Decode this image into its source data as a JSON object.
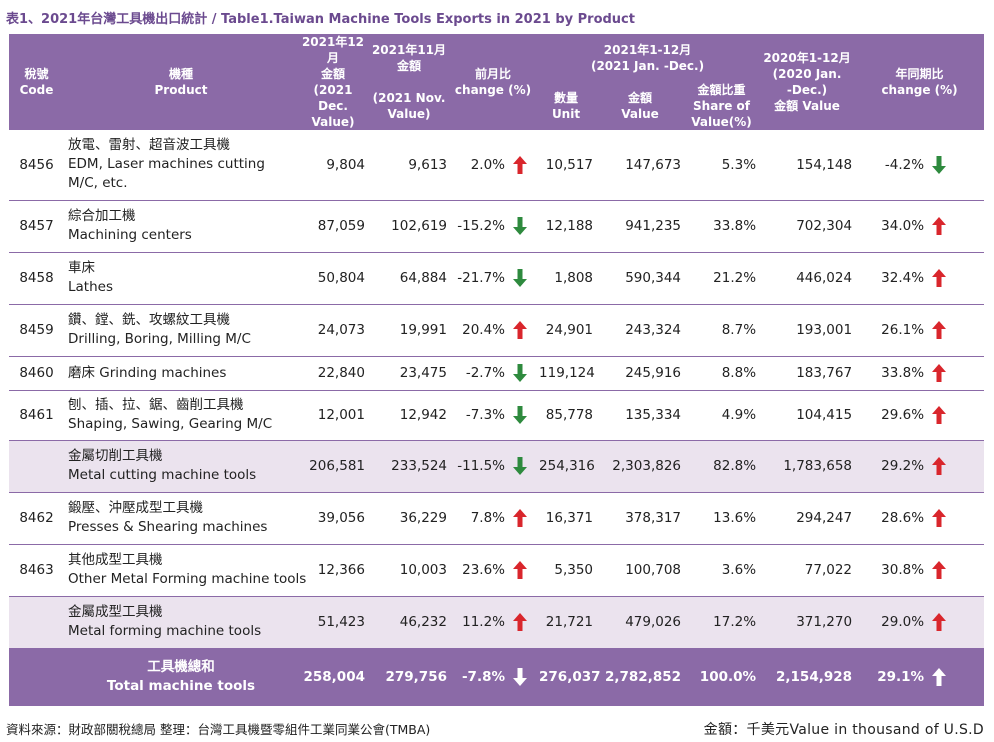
{
  "title": "表1、2021年台灣工具機出口統計 / Table1.Taiwan Machine Tools Exports  in 2021 by Product",
  "headers": {
    "code": [
      "稅號",
      "Code"
    ],
    "product": [
      "機種",
      "Product"
    ],
    "dec_top": [
      "2021年12月",
      "金額"
    ],
    "dec_bottom": [
      "(2021 Dec.",
      "Value)"
    ],
    "nov_top": [
      "2021年11月",
      "金額"
    ],
    "nov_bottom": [
      "(2021 Nov.",
      "Value)"
    ],
    "mom": [
      "前月比",
      "change (%)"
    ],
    "ytd_group": [
      "2021年1-12月",
      "(2021 Jan. -Dec.)"
    ],
    "unit": [
      "數量",
      "Unit"
    ],
    "value": [
      "金額",
      "Value"
    ],
    "share": [
      "金額比重",
      "Share of",
      "Value(%)"
    ],
    "prev": [
      "2020年1-12月",
      "(2020 Jan.",
      "-Dec.)",
      "金額 Value"
    ],
    "yoy": [
      "年同期比",
      "change (%)"
    ]
  },
  "colors": {
    "header_bg": "#8b6aa7",
    "subtotal_bg": "#ebe3ee",
    "up_arrow": "#d9262c",
    "down_arrow": "#2e8a3e",
    "total_arrow": "#ffffff"
  },
  "rows": [
    {
      "code": "8456",
      "name": [
        "放電、雷射、超音波工具機",
        "EDM, Laser machines cutting",
        "M/C, etc."
      ],
      "dec": "9,804",
      "nov": "9,613",
      "mom": "2.0%",
      "mom_dir": "up",
      "unit": "10,517",
      "value": "147,673",
      "share": "5.3%",
      "prev": "154,148",
      "yoy": "-4.2%",
      "yoy_dir": "down",
      "type": "normal"
    },
    {
      "code": "8457",
      "name": [
        "綜合加工機",
        "Machining centers"
      ],
      "dec": "87,059",
      "nov": "102,619",
      "mom": "-15.2%",
      "mom_dir": "down",
      "unit": "12,188",
      "value": "941,235",
      "share": "33.8%",
      "prev": "702,304",
      "yoy": "34.0%",
      "yoy_dir": "up",
      "type": "normal"
    },
    {
      "code": "8458",
      "name": [
        "車床",
        "Lathes"
      ],
      "dec": "50,804",
      "nov": "64,884",
      "mom": "-21.7%",
      "mom_dir": "down",
      "unit": "1,808",
      "value": "590,344",
      "share": "21.2%",
      "prev": "446,024",
      "yoy": "32.4%",
      "yoy_dir": "up",
      "type": "normal"
    },
    {
      "code": "8459",
      "name": [
        "鑽、鏜、銑、攻螺紋工具機",
        "Drilling, Boring, Milling M/C"
      ],
      "dec": "24,073",
      "nov": "19,991",
      "mom": "20.4%",
      "mom_dir": "up",
      "unit": "24,901",
      "value": "243,324",
      "share": "8.7%",
      "prev": "193,001",
      "yoy": "26.1%",
      "yoy_dir": "up",
      "type": "normal"
    },
    {
      "code": "8460",
      "name": [
        "磨床  Grinding machines"
      ],
      "dec": "22,840",
      "nov": "23,475",
      "mom": "-2.7%",
      "mom_dir": "down",
      "unit": "119,124",
      "value": "245,916",
      "share": "8.8%",
      "prev": "183,767",
      "yoy": "33.8%",
      "yoy_dir": "up",
      "type": "normal"
    },
    {
      "code": "8461",
      "name": [
        "刨、插、拉、鋸、齒削工具機",
        "Shaping, Sawing, Gearing M/C"
      ],
      "dec": "12,001",
      "nov": "12,942",
      "mom": "-7.3%",
      "mom_dir": "down",
      "unit": "85,778",
      "value": "135,334",
      "share": "4.9%",
      "prev": "104,415",
      "yoy": "29.6%",
      "yoy_dir": "up",
      "type": "normal"
    },
    {
      "code": "",
      "name": [
        "金屬切削工具機",
        "Metal cutting machine tools"
      ],
      "dec": "206,581",
      "nov": "233,524",
      "mom": "-11.5%",
      "mom_dir": "down",
      "unit": "254,316",
      "value": "2,303,826",
      "share": "82.8%",
      "prev": "1,783,658",
      "yoy": "29.2%",
      "yoy_dir": "up",
      "type": "sub"
    },
    {
      "code": "8462",
      "name": [
        "鍛壓、沖壓成型工具機",
        "Presses & Shearing machines"
      ],
      "dec": "39,056",
      "nov": "36,229",
      "mom": "7.8%",
      "mom_dir": "up",
      "unit": "16,371",
      "value": "378,317",
      "share": "13.6%",
      "prev": "294,247",
      "yoy": "28.6%",
      "yoy_dir": "up",
      "type": "normal"
    },
    {
      "code": "8463",
      "name": [
        "其他成型工具機",
        "Other Metal Forming machine tools"
      ],
      "dec": "12,366",
      "nov": "10,003",
      "mom": "23.6%",
      "mom_dir": "up",
      "unit": "5,350",
      "value": "100,708",
      "share": "3.6%",
      "prev": "77,022",
      "yoy": "30.8%",
      "yoy_dir": "up",
      "type": "normal"
    },
    {
      "code": "",
      "name": [
        "金屬成型工具機",
        "Metal forming machine tools"
      ],
      "dec": "51,423",
      "nov": "46,232",
      "mom": "11.2%",
      "mom_dir": "up",
      "unit": "21,721",
      "value": "479,026",
      "share": "17.2%",
      "prev": "371,270",
      "yoy": "29.0%",
      "yoy_dir": "up",
      "type": "sub"
    },
    {
      "code": "",
      "name": [
        "工具機總和",
        "Total machine tools"
      ],
      "dec": "258,004",
      "nov": "279,756",
      "mom": "-7.8%",
      "mom_dir": "down",
      "unit": "276,037",
      "value": "2,782,852",
      "share": "100.0%",
      "prev": "2,154,928",
      "yoy": "29.1%",
      "yoy_dir": "up",
      "type": "total"
    }
  ],
  "footer": {
    "source": "資料來源：財政部關稅總局  整理：台灣工具機暨零組件工業同業公會(TMBA)",
    "unit": "金額：千美元Value in thousand of U.S.D"
  }
}
